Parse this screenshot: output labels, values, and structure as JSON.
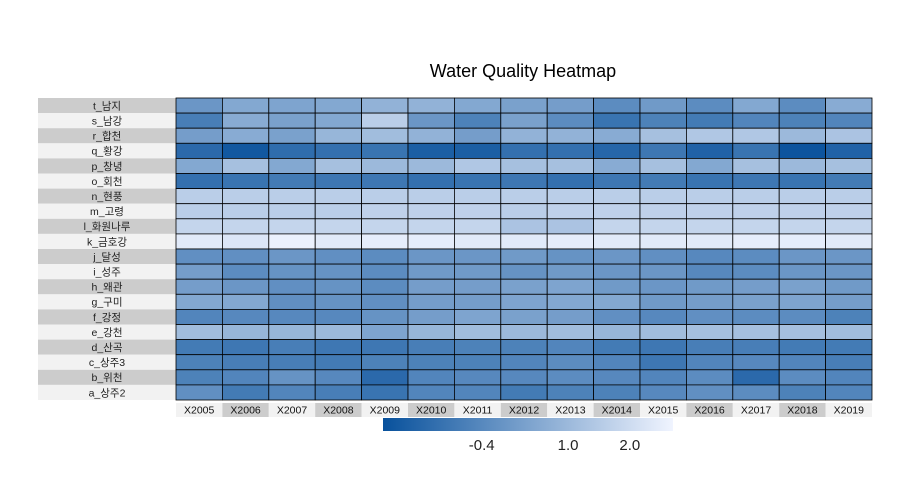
{
  "chart_data": {
    "type": "heatmap",
    "title": "Water Quality Heatmap",
    "rows": [
      "t_남지",
      "s_남강",
      "r_합천",
      "q_황강",
      "p_창녕",
      "o_회천",
      "n_현풍",
      "m_고령",
      "l_화원나루",
      "k_금호강",
      "j_달성",
      "i_성주",
      "h_왜관",
      "g_구미",
      "f_강정",
      "e_강천",
      "d_산곡",
      "c_상주3",
      "b_위천",
      "a_상주2"
    ],
    "columns": [
      "X2005",
      "X2006",
      "X2007",
      "X2008",
      "X2009",
      "X2010",
      "X2011",
      "X2012",
      "X2013",
      "X2014",
      "X2015",
      "X2016",
      "X2017",
      "X2018",
      "X2019"
    ],
    "values": [
      [
        0.0,
        0.5,
        0.4,
        0.5,
        0.8,
        0.8,
        0.5,
        0.3,
        0.2,
        -0.3,
        0.1,
        -0.3,
        0.5,
        -0.3,
        0.6
      ],
      [
        -0.7,
        0.6,
        0.3,
        0.5,
        1.6,
        0.0,
        -0.6,
        0.3,
        -0.3,
        -1.0,
        -0.6,
        -0.8,
        -0.5,
        -0.6,
        -0.5
      ],
      [
        0.2,
        0.6,
        0.3,
        0.9,
        1.1,
        0.8,
        0.2,
        0.8,
        0.8,
        0.6,
        1.2,
        1.4,
        1.4,
        1.0,
        1.3
      ],
      [
        -1.3,
        -1.8,
        -1.2,
        -1.1,
        -1.0,
        -1.6,
        -1.6,
        -1.1,
        -1.1,
        -1.4,
        -0.9,
        -1.5,
        -1.0,
        -1.9,
        -1.5
      ],
      [
        0.5,
        1.2,
        0.5,
        1.2,
        1.0,
        1.0,
        1.4,
        1.2,
        1.2,
        0.6,
        1.2,
        0.5,
        1.2,
        1.0,
        1.2
      ],
      [
        -1.1,
        -1.0,
        -0.8,
        -0.9,
        -0.9,
        -1.1,
        -1.0,
        -0.9,
        -1.1,
        -0.9,
        -0.8,
        -1.0,
        -0.9,
        -1.0,
        -0.8
      ],
      [
        1.6,
        1.6,
        1.6,
        1.6,
        1.6,
        1.6,
        1.6,
        1.6,
        1.6,
        1.6,
        1.6,
        1.6,
        1.6,
        1.6,
        1.6
      ],
      [
        1.6,
        1.6,
        1.6,
        1.6,
        1.7,
        1.7,
        1.7,
        1.6,
        1.7,
        1.7,
        1.7,
        1.7,
        1.7,
        1.7,
        1.7
      ],
      [
        1.8,
        1.8,
        1.8,
        1.8,
        1.8,
        1.8,
        1.8,
        1.3,
        1.3,
        1.8,
        1.8,
        1.8,
        1.8,
        1.8,
        1.8
      ],
      [
        2.4,
        2.3,
        2.6,
        2.4,
        2.5,
        2.5,
        2.4,
        2.4,
        2.5,
        2.4,
        2.4,
        2.4,
        2.5,
        2.5,
        2.4
      ],
      [
        -0.2,
        -0.2,
        0.0,
        -0.2,
        -0.3,
        0.0,
        0.0,
        0.1,
        -0.1,
        0.0,
        -0.2,
        -0.4,
        -0.3,
        0.0,
        0.0
      ],
      [
        0.2,
        -0.3,
        -0.1,
        -0.1,
        -0.3,
        0.1,
        0.1,
        -0.1,
        0.1,
        0.0,
        0.0,
        -0.4,
        -0.3,
        0.0,
        0.0
      ],
      [
        0.2,
        0.0,
        -0.2,
        -0.1,
        -0.3,
        0.2,
        0.2,
        0.3,
        0.4,
        0.1,
        0.0,
        0.1,
        0.2,
        0.3,
        0.1
      ],
      [
        0.5,
        0.5,
        -0.2,
        -0.1,
        -0.2,
        0.2,
        0.2,
        0.4,
        0.5,
        0.5,
        0.1,
        0.2,
        0.3,
        0.4,
        0.2
      ],
      [
        -0.5,
        -0.4,
        -0.4,
        -0.4,
        -0.1,
        0.2,
        0.4,
        0.3,
        0.2,
        -0.2,
        -0.4,
        -0.2,
        -0.3,
        -0.3,
        -0.6
      ],
      [
        1.1,
        0.9,
        0.9,
        1.0,
        0.4,
        0.9,
        1.1,
        1.0,
        1.1,
        0.9,
        1.1,
        1.2,
        1.2,
        1.2,
        1.1
      ],
      [
        -0.8,
        -0.9,
        -0.7,
        -0.9,
        -0.9,
        -0.7,
        -0.6,
        -0.6,
        -0.5,
        -0.8,
        -0.9,
        -0.7,
        -0.7,
        -0.8,
        -0.8
      ],
      [
        -0.6,
        -0.7,
        -0.7,
        -0.8,
        -0.6,
        -0.6,
        -0.6,
        -0.5,
        -0.3,
        -0.5,
        -0.9,
        -0.5,
        -0.4,
        -0.5,
        -0.7
      ],
      [
        -0.6,
        -0.5,
        -0.1,
        -0.4,
        -1.3,
        -0.5,
        -0.4,
        -0.4,
        -0.3,
        -0.4,
        -0.5,
        -0.3,
        -1.3,
        -0.3,
        -0.5
      ],
      [
        -0.2,
        -0.8,
        -0.5,
        -0.7,
        -1.0,
        -0.5,
        -0.5,
        -0.8,
        -0.6,
        -0.6,
        -0.4,
        -0.2,
        -0.3,
        -0.6,
        -0.5
      ]
    ],
    "legend": {
      "ticks": [
        -0.4,
        1.0,
        2.0
      ],
      "tick_labels": [
        "-0.4",
        "1.0",
        "2.0"
      ],
      "range": [
        -2.0,
        2.7
      ],
      "colors": [
        "#08519c",
        "#f0f4ff"
      ]
    }
  }
}
